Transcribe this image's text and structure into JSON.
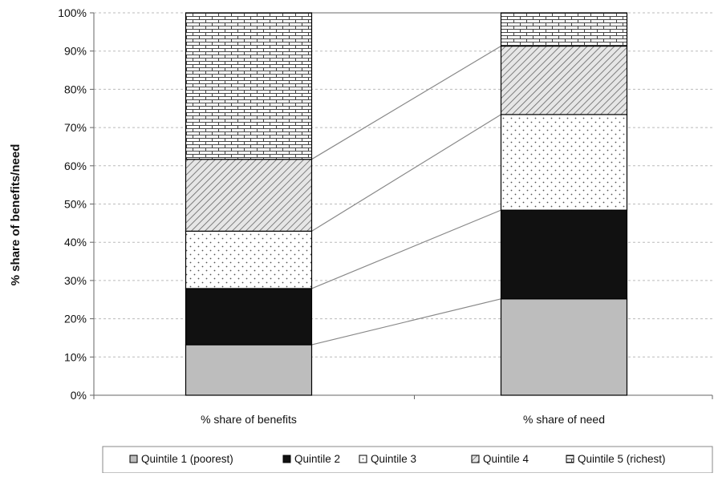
{
  "chart_data": {
    "type": "bar",
    "stacked": true,
    "normalized": true,
    "title": "",
    "xlabel": "",
    "ylabel": "% share of benefits/need",
    "ylim": [
      0,
      100
    ],
    "yticks": [
      "0%",
      "10%",
      "20%",
      "30%",
      "40%",
      "50%",
      "60%",
      "70%",
      "80%",
      "90%",
      "100%"
    ],
    "categories": [
      "% share of benefits",
      "% share of need"
    ],
    "series": [
      {
        "name": "Quintile 1 (poorest)",
        "values": [
          13.2,
          25.2
        ],
        "color": "#bdbdbd",
        "pattern": "solid-grey"
      },
      {
        "name": "Quintile 2",
        "values": [
          14.7,
          23.2
        ],
        "color": "#111111",
        "pattern": "solid-black"
      },
      {
        "name": "Quintile 3",
        "values": [
          15.0,
          25.0
        ],
        "color": "#ffffff",
        "pattern": "dots"
      },
      {
        "name": "Quintile 4",
        "values": [
          18.8,
          17.9
        ],
        "color": "#dddddd",
        "pattern": "diagonal"
      },
      {
        "name": "Quintile 5 (richest)",
        "values": [
          38.3,
          8.7
        ],
        "color": "#ffffff",
        "pattern": "brick"
      }
    ],
    "connector_lines": true,
    "grid": "horizontal dashed",
    "legend_position": "bottom"
  }
}
